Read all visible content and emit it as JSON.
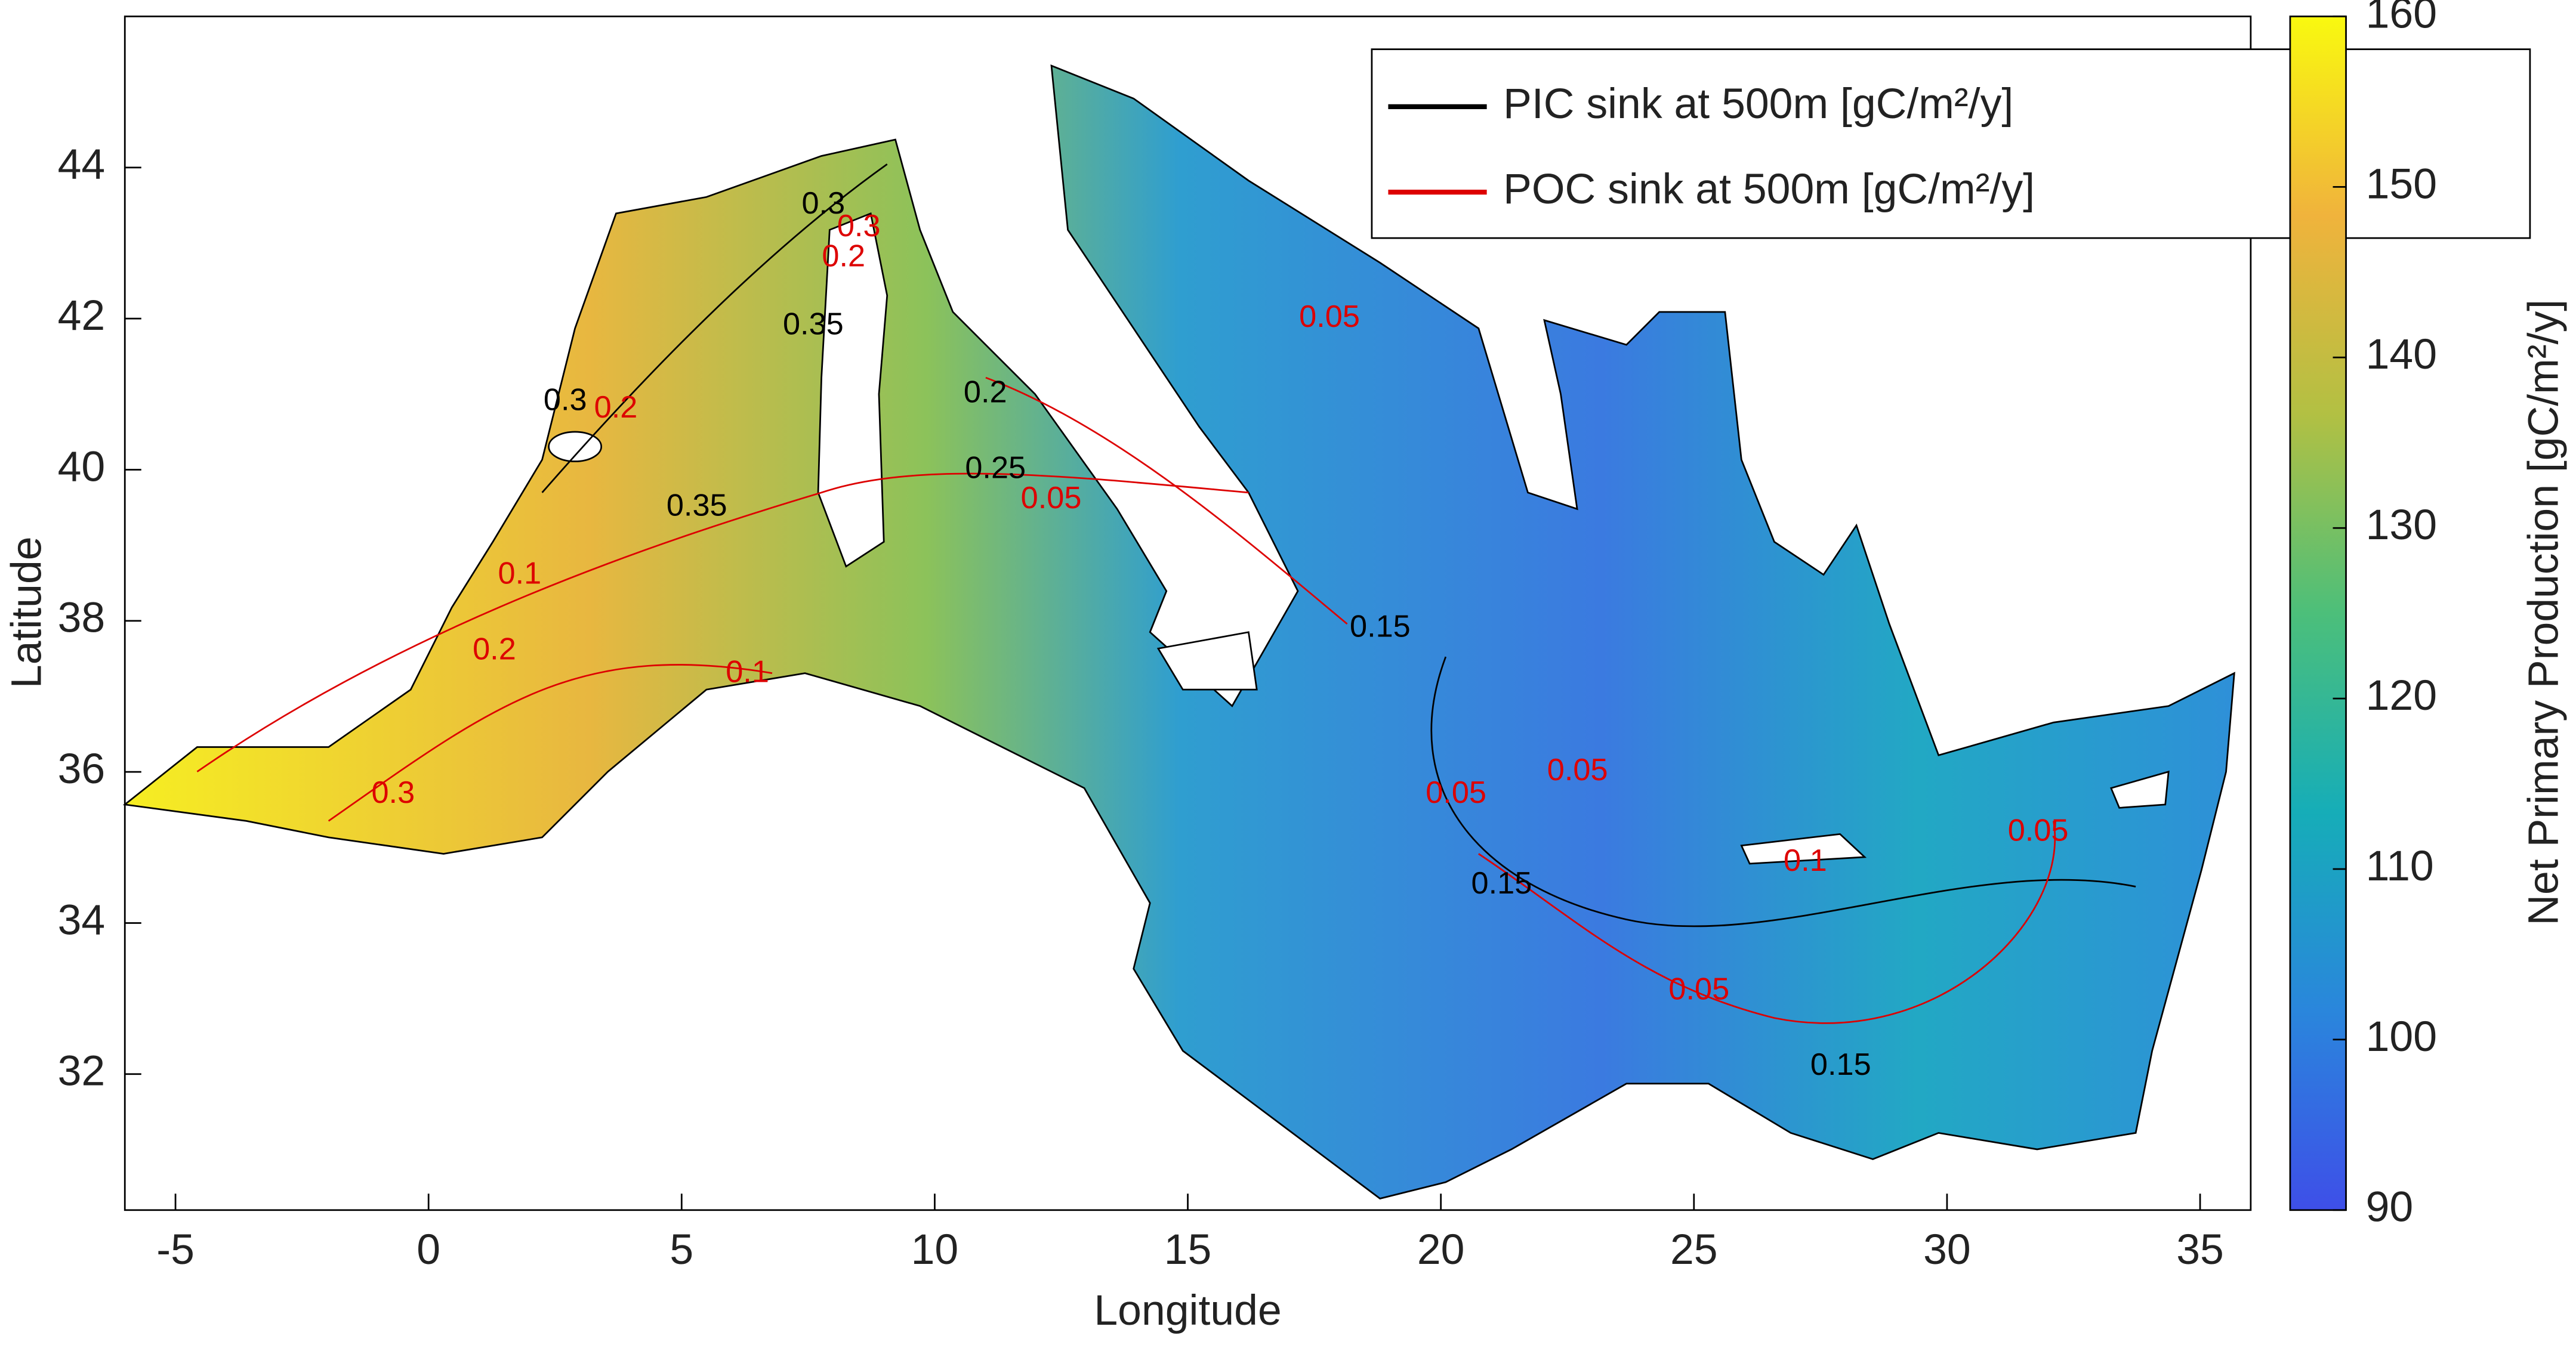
{
  "chart_data": {
    "type": "map",
    "xlabel": "Longitude",
    "ylabel": "Latitude",
    "xlim": [
      -6,
      36
    ],
    "ylim": [
      30.2,
      46
    ],
    "xticks": [
      -5,
      0,
      5,
      10,
      15,
      20,
      25,
      30,
      35
    ],
    "yticks": [
      32,
      34,
      36,
      38,
      40,
      42,
      44
    ],
    "colorbar": {
      "label": "Net Primary Production [gC/m²/y]",
      "clim": [
        90,
        160
      ],
      "ticks": [
        90,
        100,
        110,
        120,
        130,
        140,
        150,
        160
      ],
      "colormap": [
        "#3e4fe8",
        "#2a86dc",
        "#16adb8",
        "#4cbf7a",
        "#b2c043",
        "#f0b33c",
        "#f9f90f"
      ]
    },
    "series": [
      {
        "name": "PIC sink at 500m [gC/m²/y]",
        "color": "#000000",
        "labels": [
          {
            "value": 0.3,
            "lon": 7.8,
            "lat": 43.5
          },
          {
            "value": 0.35,
            "lon": 7.6,
            "lat": 41.9
          },
          {
            "value": 0.3,
            "lon": 2.7,
            "lat": 40.9
          },
          {
            "value": 0.35,
            "lon": 5.3,
            "lat": 39.5
          },
          {
            "value": 0.2,
            "lon": 11.0,
            "lat": 41.0
          },
          {
            "value": 0.25,
            "lon": 11.2,
            "lat": 40.0
          },
          {
            "value": 0.15,
            "lon": 18.8,
            "lat": 37.9
          },
          {
            "value": 0.15,
            "lon": 21.2,
            "lat": 34.5
          },
          {
            "value": 0.15,
            "lon": 27.9,
            "lat": 32.1
          }
        ]
      },
      {
        "name": "POC sink at 500m [gC/m²/y]",
        "color": "#dd0000",
        "labels": [
          {
            "value": 0.3,
            "lon": 8.5,
            "lat": 43.2
          },
          {
            "value": 0.2,
            "lon": 8.2,
            "lat": 42.8
          },
          {
            "value": 0.2,
            "lon": 3.7,
            "lat": 40.8
          },
          {
            "value": 0.05,
            "lon": 17.8,
            "lat": 42.0
          },
          {
            "value": 0.05,
            "lon": 12.3,
            "lat": 39.6
          },
          {
            "value": 0.1,
            "lon": 1.8,
            "lat": 38.6
          },
          {
            "value": 0.2,
            "lon": 1.3,
            "lat": 37.6
          },
          {
            "value": 0.3,
            "lon": -0.7,
            "lat": 35.7
          },
          {
            "value": 0.1,
            "lon": 6.3,
            "lat": 37.3
          },
          {
            "value": 0.05,
            "lon": 20.3,
            "lat": 35.7
          },
          {
            "value": 0.05,
            "lon": 22.7,
            "lat": 36.0
          },
          {
            "value": 0.1,
            "lon": 27.2,
            "lat": 34.8
          },
          {
            "value": 0.05,
            "lon": 25.1,
            "lat": 33.1
          },
          {
            "value": 0.05,
            "lon": 31.8,
            "lat": 35.2
          }
        ]
      }
    ]
  }
}
